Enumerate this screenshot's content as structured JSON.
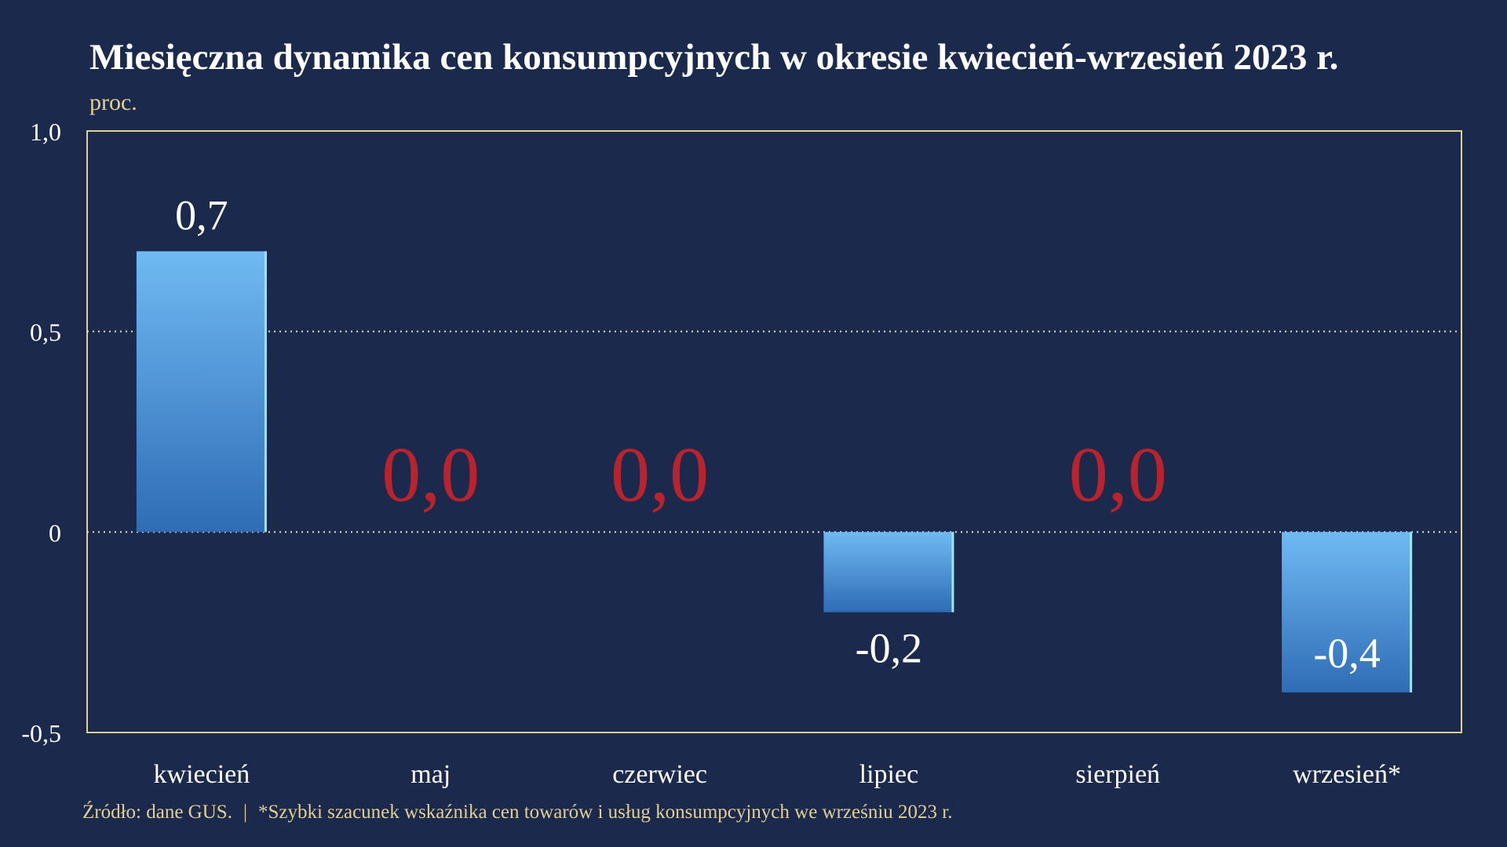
{
  "title": "Miesięczna dynamika cen konsumpcyjnych w okresie kwiecień-wrzesień 2023 r.",
  "unit_label": "proc.",
  "footer": {
    "source": "Źródło: dane GUS.",
    "separator": "|",
    "note": "*Szybki szacunek wskaźnika cen towarów i usług konsumpcyjnych we wrześniu 2023 r."
  },
  "colors": {
    "background": "#1b2a4c",
    "bar_top": "#6fbaf3",
    "bar_bottom": "#2f6cb5",
    "bar_edge": "#9be4f2",
    "zero_label": "#b8232d",
    "frame": "#e3cf92",
    "text": "#ffffff"
  },
  "chart_data": {
    "type": "bar",
    "title": "Miesięczna dynamika cen konsumpcyjnych w okresie kwiecień-wrzesień 2023 r.",
    "ylabel": "proc.",
    "xlabel": "",
    "categories": [
      "kwiecień",
      "maj",
      "czerwiec",
      "lipiec",
      "sierpień",
      "wrzesień*"
    ],
    "values": [
      0.7,
      0.0,
      0.0,
      -0.2,
      0.0,
      -0.4
    ],
    "data_labels": [
      "0,7",
      "0,0",
      "0,0",
      "-0,2",
      "0,0",
      "-0,4"
    ],
    "ylim": [
      -0.5,
      1.0
    ],
    "yticks": [
      1.0,
      0.5,
      0,
      -0.5
    ],
    "ytick_labels": [
      "1,0",
      "0,5",
      "0",
      "-0,5"
    ],
    "gridlines": [
      0.5,
      0
    ],
    "grid": "dotted",
    "legend": "none"
  }
}
